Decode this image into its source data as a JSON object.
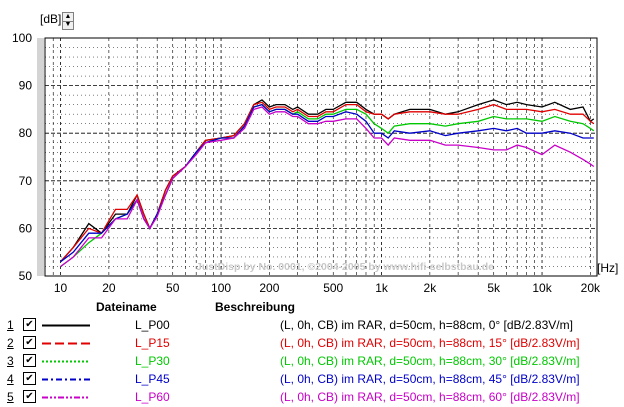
{
  "unit_y": "[dB]",
  "unit_x": "[Hz]",
  "watermark": "JustDisp by No. 0001, ©2004-2005 by www.hifi-selbstbau.de",
  "legend": {
    "name_header": "Dateiname",
    "desc_header": "Beschreibung",
    "rows": [
      {
        "num": "1",
        "name": "L_P00",
        "desc": "(L, 0h, CB) im RAR, d=50cm, h=88cm, 0° [dB/2.83V/m]",
        "color": "#000000",
        "dash": "solid"
      },
      {
        "num": "2",
        "name": "L_P15",
        "desc": "(L, 0h, CB) im RAR, d=50cm, h=88cm, 15° [dB/2.83V/m]",
        "color": "#e00000",
        "dash": "long-dash"
      },
      {
        "num": "3",
        "name": "L_P30",
        "desc": "(L, 0h, CB) im RAR, d=50cm, h=88cm, 30° [dB/2.83V/m]",
        "color": "#00c800",
        "dash": "dotted"
      },
      {
        "num": "4",
        "name": "L_P45",
        "desc": "(L, 0h, CB) im RAR, d=50cm, h=88cm, 45° [dB/2.83V/m]",
        "color": "#0000c8",
        "dash": "dash-dot"
      },
      {
        "num": "5",
        "name": "L_P60",
        "desc": "(L, 0h, CB) im RAR, d=50cm, h=88cm, 60° [dB/2.83V/m]",
        "color": "#c800c8",
        "dash": "dash-dot-dot"
      }
    ]
  },
  "chart_data": {
    "type": "line",
    "xlabel": "[Hz]",
    "ylabel": "[dB]",
    "xscale": "log",
    "xlim": [
      8,
      22000
    ],
    "ylim": [
      50,
      100
    ],
    "grid": true,
    "legend_placement": "bottom",
    "xticks": [
      {
        "v": 10,
        "label": "10"
      },
      {
        "v": 20,
        "label": "20"
      },
      {
        "v": 50,
        "label": "50"
      },
      {
        "v": 100,
        "label": "100"
      },
      {
        "v": 200,
        "label": "200"
      },
      {
        "v": 500,
        "label": "500"
      },
      {
        "v": 1000,
        "label": "1k"
      },
      {
        "v": 2000,
        "label": "2k"
      },
      {
        "v": 5000,
        "label": "5k"
      },
      {
        "v": 10000,
        "label": "10k"
      },
      {
        "v": 20000,
        "label": "20k"
      }
    ],
    "yticks": [
      50,
      60,
      70,
      80,
      90,
      100
    ],
    "series": [
      {
        "name": "L_P00",
        "color": "#000000",
        "points": [
          [
            10,
            53
          ],
          [
            12,
            56
          ],
          [
            15,
            61
          ],
          [
            18,
            59
          ],
          [
            22,
            63
          ],
          [
            26,
            63
          ],
          [
            30,
            67
          ],
          [
            33,
            63
          ],
          [
            36,
            60
          ],
          [
            40,
            63
          ],
          [
            45,
            68
          ],
          [
            50,
            71
          ],
          [
            60,
            73
          ],
          [
            70,
            76
          ],
          [
            80,
            78.5
          ],
          [
            100,
            79
          ],
          [
            120,
            79.5
          ],
          [
            140,
            82
          ],
          [
            160,
            86
          ],
          [
            180,
            87
          ],
          [
            200,
            85.5
          ],
          [
            220,
            86
          ],
          [
            250,
            86
          ],
          [
            280,
            85
          ],
          [
            300,
            85.5
          ],
          [
            350,
            84
          ],
          [
            400,
            84
          ],
          [
            450,
            85
          ],
          [
            500,
            85
          ],
          [
            600,
            86.5
          ],
          [
            700,
            86.5
          ],
          [
            800,
            85
          ],
          [
            900,
            84
          ],
          [
            1000,
            84
          ],
          [
            1100,
            83
          ],
          [
            1200,
            84
          ],
          [
            1500,
            85
          ],
          [
            2000,
            85
          ],
          [
            2500,
            84
          ],
          [
            3000,
            84.5
          ],
          [
            4000,
            86
          ],
          [
            5000,
            87
          ],
          [
            6000,
            86
          ],
          [
            7000,
            86.5
          ],
          [
            8000,
            86
          ],
          [
            10000,
            85.5
          ],
          [
            12000,
            86.5
          ],
          [
            15000,
            85
          ],
          [
            18000,
            85.5
          ],
          [
            20000,
            82.5
          ],
          [
            21000,
            83
          ]
        ]
      },
      {
        "name": "L_P15",
        "color": "#e00000",
        "points": [
          [
            10,
            53
          ],
          [
            12,
            56
          ],
          [
            15,
            60
          ],
          [
            18,
            59
          ],
          [
            22,
            64
          ],
          [
            26,
            64
          ],
          [
            30,
            67
          ],
          [
            33,
            63
          ],
          [
            36,
            60
          ],
          [
            40,
            63
          ],
          [
            45,
            68
          ],
          [
            50,
            71
          ],
          [
            60,
            73
          ],
          [
            70,
            76
          ],
          [
            80,
            78.5
          ],
          [
            100,
            79
          ],
          [
            120,
            79.5
          ],
          [
            140,
            82
          ],
          [
            160,
            86
          ],
          [
            180,
            86.5
          ],
          [
            200,
            85
          ],
          [
            220,
            85.5
          ],
          [
            250,
            85.5
          ],
          [
            280,
            84.5
          ],
          [
            300,
            85
          ],
          [
            350,
            83.5
          ],
          [
            400,
            83.5
          ],
          [
            450,
            84.5
          ],
          [
            500,
            84.5
          ],
          [
            600,
            86
          ],
          [
            700,
            86
          ],
          [
            800,
            84.5
          ],
          [
            900,
            84
          ],
          [
            1000,
            84
          ],
          [
            1100,
            83
          ],
          [
            1200,
            84
          ],
          [
            1500,
            84.5
          ],
          [
            2000,
            84.5
          ],
          [
            2500,
            84
          ],
          [
            3000,
            84
          ],
          [
            4000,
            85
          ],
          [
            5000,
            86
          ],
          [
            6000,
            85
          ],
          [
            7000,
            85
          ],
          [
            8000,
            85
          ],
          [
            10000,
            84.5
          ],
          [
            12000,
            85
          ],
          [
            15000,
            84
          ],
          [
            18000,
            84
          ],
          [
            20000,
            82.5
          ],
          [
            21000,
            82
          ]
        ]
      },
      {
        "name": "L_P30",
        "color": "#00c800",
        "points": [
          [
            10,
            52
          ],
          [
            12,
            54
          ],
          [
            15,
            57
          ],
          [
            18,
            59
          ],
          [
            22,
            62
          ],
          [
            26,
            63
          ],
          [
            30,
            66
          ],
          [
            33,
            62
          ],
          [
            36,
            60
          ],
          [
            40,
            63
          ],
          [
            45,
            67
          ],
          [
            50,
            70.5
          ],
          [
            60,
            73
          ],
          [
            70,
            76
          ],
          [
            80,
            78
          ],
          [
            100,
            79
          ],
          [
            120,
            79
          ],
          [
            140,
            81.5
          ],
          [
            160,
            85.5
          ],
          [
            180,
            86
          ],
          [
            200,
            84.5
          ],
          [
            220,
            85
          ],
          [
            250,
            85
          ],
          [
            280,
            84
          ],
          [
            300,
            84.5
          ],
          [
            350,
            83
          ],
          [
            400,
            83
          ],
          [
            450,
            84
          ],
          [
            500,
            84
          ],
          [
            600,
            85
          ],
          [
            700,
            85
          ],
          [
            800,
            84
          ],
          [
            900,
            82
          ],
          [
            1000,
            81
          ],
          [
            1100,
            80
          ],
          [
            1200,
            81.5
          ],
          [
            1500,
            82
          ],
          [
            2000,
            82
          ],
          [
            2500,
            81.5
          ],
          [
            3000,
            82
          ],
          [
            4000,
            82.5
          ],
          [
            5000,
            83.5
          ],
          [
            6000,
            83
          ],
          [
            7000,
            83
          ],
          [
            8000,
            83
          ],
          [
            10000,
            82.5
          ],
          [
            12000,
            83.5
          ],
          [
            15000,
            82.5
          ],
          [
            18000,
            82
          ],
          [
            20000,
            81
          ],
          [
            21000,
            80.5
          ]
        ]
      },
      {
        "name": "L_P45",
        "color": "#0000c8",
        "points": [
          [
            10,
            53
          ],
          [
            12,
            55
          ],
          [
            15,
            59
          ],
          [
            18,
            59
          ],
          [
            22,
            62
          ],
          [
            26,
            63
          ],
          [
            30,
            66
          ],
          [
            33,
            62
          ],
          [
            36,
            60
          ],
          [
            40,
            63
          ],
          [
            45,
            67
          ],
          [
            50,
            70.5
          ],
          [
            60,
            73
          ],
          [
            70,
            76
          ],
          [
            80,
            78
          ],
          [
            100,
            79
          ],
          [
            120,
            79
          ],
          [
            140,
            81.5
          ],
          [
            160,
            85.5
          ],
          [
            180,
            86
          ],
          [
            200,
            84.5
          ],
          [
            220,
            85
          ],
          [
            250,
            85
          ],
          [
            280,
            84
          ],
          [
            300,
            84
          ],
          [
            350,
            82.5
          ],
          [
            400,
            82.5
          ],
          [
            450,
            83.5
          ],
          [
            500,
            83.5
          ],
          [
            600,
            84.5
          ],
          [
            700,
            84
          ],
          [
            800,
            82.5
          ],
          [
            900,
            80
          ],
          [
            1000,
            80
          ],
          [
            1100,
            79
          ],
          [
            1200,
            80.5
          ],
          [
            1500,
            80
          ],
          [
            2000,
            80.5
          ],
          [
            2500,
            79.5
          ],
          [
            3000,
            80
          ],
          [
            4000,
            80.5
          ],
          [
            5000,
            81
          ],
          [
            6000,
            80.5
          ],
          [
            7000,
            81
          ],
          [
            8000,
            80
          ],
          [
            10000,
            80
          ],
          [
            12000,
            80.5
          ],
          [
            15000,
            80
          ],
          [
            18000,
            79
          ],
          [
            20000,
            79
          ],
          [
            21000,
            79
          ]
        ]
      },
      {
        "name": "L_P60",
        "color": "#c800c8",
        "points": [
          [
            10,
            52
          ],
          [
            12,
            54
          ],
          [
            15,
            58
          ],
          [
            18,
            58
          ],
          [
            22,
            62
          ],
          [
            26,
            62
          ],
          [
            30,
            66
          ],
          [
            33,
            62
          ],
          [
            36,
            60
          ],
          [
            40,
            62.5
          ],
          [
            45,
            67
          ],
          [
            50,
            70.5
          ],
          [
            60,
            73
          ],
          [
            70,
            75.5
          ],
          [
            80,
            78
          ],
          [
            100,
            78.5
          ],
          [
            120,
            79
          ],
          [
            140,
            81
          ],
          [
            160,
            85
          ],
          [
            180,
            85.5
          ],
          [
            200,
            84
          ],
          [
            220,
            84.5
          ],
          [
            250,
            84.5
          ],
          [
            280,
            83.5
          ],
          [
            300,
            83.5
          ],
          [
            350,
            82
          ],
          [
            400,
            82
          ],
          [
            450,
            82.5
          ],
          [
            500,
            82.5
          ],
          [
            600,
            83
          ],
          [
            700,
            83
          ],
          [
            800,
            81
          ],
          [
            900,
            79
          ],
          [
            1000,
            79
          ],
          [
            1100,
            77.5
          ],
          [
            1200,
            79
          ],
          [
            1500,
            78.5
          ],
          [
            2000,
            78.5
          ],
          [
            2500,
            77.5
          ],
          [
            3000,
            77.5
          ],
          [
            4000,
            77
          ],
          [
            5000,
            76.5
          ],
          [
            6000,
            76.5
          ],
          [
            7000,
            77.5
          ],
          [
            8000,
            77
          ],
          [
            10000,
            75.5
          ],
          [
            12000,
            77.5
          ],
          [
            15000,
            76
          ],
          [
            18000,
            74.5
          ],
          [
            20000,
            73.5
          ],
          [
            21000,
            73
          ]
        ]
      }
    ]
  }
}
